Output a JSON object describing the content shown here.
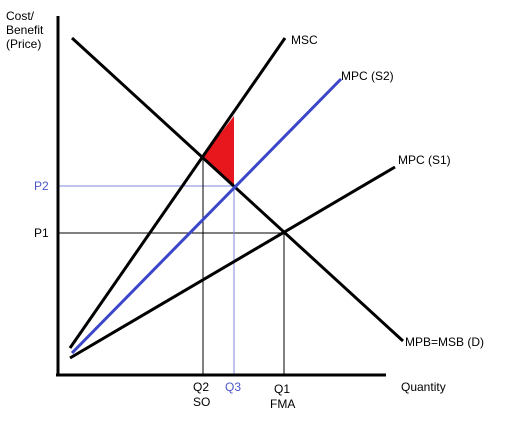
{
  "axes": {
    "y_title": [
      "Cost/",
      "Benefit",
      "(Price)"
    ],
    "x_title": "Quantity"
  },
  "curves": {
    "msc": "MSC",
    "mpc_s2": "MPC (S2)",
    "mpc_s1": "MPC (S1)",
    "demand": "MPB=MSB (D)"
  },
  "price_labels": {
    "p2": "P2",
    "p1": "P1"
  },
  "quantity_labels": {
    "q2": "Q2",
    "q2_sub": "SO",
    "q3": "Q3",
    "q1": "Q1",
    "q1_sub": "FMA"
  },
  "colors": {
    "axis": "#000000",
    "black_curves": "#000000",
    "mpc_s2": "#3b46c9",
    "welfare_loss": "#e8161d",
    "guide_black": "#000000",
    "guide_blue": "#7f89d8",
    "label_blue": "#4a55c8"
  }
}
